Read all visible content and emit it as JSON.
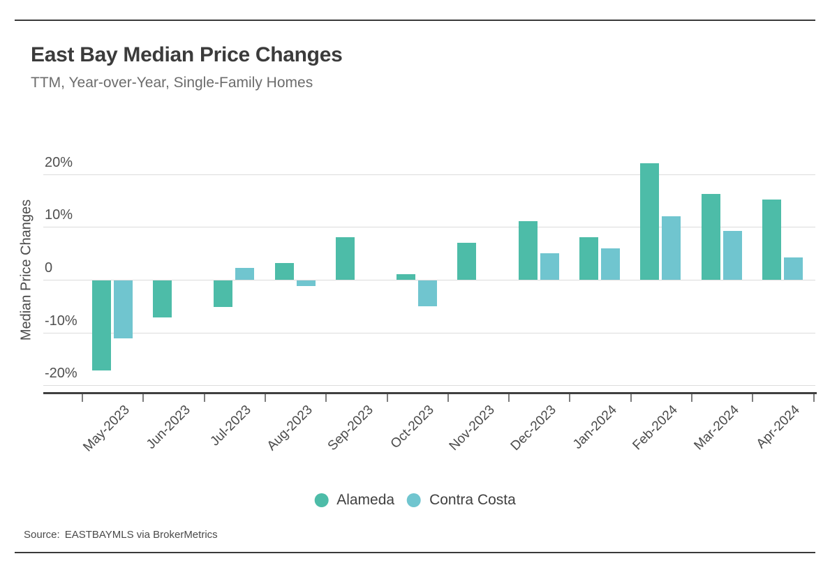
{
  "header": {
    "title": "East Bay Median Price Changes",
    "subtitle": "TTM, Year-over-Year, Single-Family Homes"
  },
  "legend": [
    {
      "label": "Alameda",
      "color": "#4dbca8"
    },
    {
      "label": "Contra Costa",
      "color": "#70c5cf"
    }
  ],
  "footer": {
    "source_label": "Source:",
    "source_text": "EASTBAYMLS via BrokerMetrics"
  },
  "chart_data": {
    "type": "bar",
    "title": "East Bay Median Price Changes",
    "subtitle": "TTM, Year-over-Year, Single-Family Homes",
    "ylabel": "Median Price Changes",
    "xlabel": "",
    "categories": [
      "May-2023",
      "Jun-2023",
      "Jul-2023",
      "Aug-2023",
      "Sep-2023",
      "Oct-2023",
      "Nov-2023",
      "Dec-2023",
      "Jan-2024",
      "Feb-2024",
      "Mar-2024",
      "Apr-2024"
    ],
    "series": [
      {
        "name": "Alameda",
        "color": "#4dbca8",
        "values": [
          -17,
          -7,
          -5,
          3.2,
          8,
          1.1,
          7,
          11.1,
          8,
          22,
          16.2,
          15.2
        ]
      },
      {
        "name": "Contra Costa",
        "color": "#70c5cf",
        "values": [
          -11,
          0,
          2.2,
          -1.1,
          0,
          -4.9,
          0,
          5,
          6,
          12,
          9.2,
          4.2
        ]
      }
    ],
    "unit": "%",
    "y_tick_labels": [
      "20%",
      "10%",
      "0",
      "-10%",
      "-20%"
    ],
    "y_tick_values": [
      20,
      10,
      0,
      -10,
      -20
    ],
    "ylim": [
      -22,
      23
    ],
    "grid": "horizontal",
    "legend_position": "bottom"
  }
}
